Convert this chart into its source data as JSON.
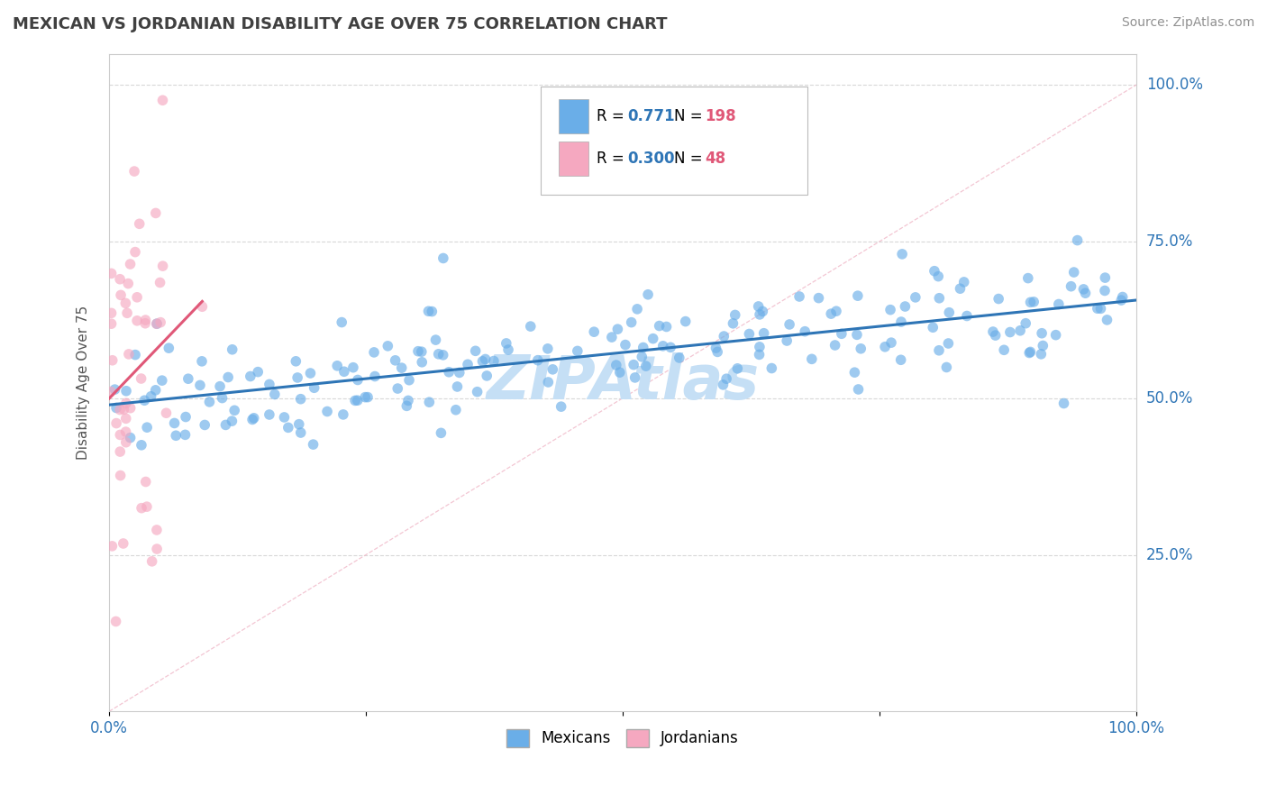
{
  "title": "MEXICAN VS JORDANIAN DISABILITY AGE OVER 75 CORRELATION CHART",
  "source_text": "Source: ZipAtlas.com",
  "ylabel": "Disability Age Over 75",
  "legend_label_1": "Mexicans",
  "legend_label_2": "Jordanians",
  "r1": 0.771,
  "n1": 198,
  "r2": 0.3,
  "n2": 48,
  "r1_text": "0.771",
  "r2_text": "0.300",
  "blue_color": "#6aaee8",
  "pink_color": "#f5a8c0",
  "blue_dark": "#2e75b6",
  "pink_line_color": "#e05878",
  "watermark_color": "#c5dff5",
  "background_color": "#ffffff",
  "grid_color": "#d8d8d8",
  "title_color": "#404040",
  "source_color": "#909090",
  "legend_r_color": "#2e75b6",
  "legend_n_color": "#e05878",
  "scatter_blue_alpha": 0.65,
  "scatter_pink_alpha": 0.65,
  "marker_size": 70,
  "line_blue_color": "#2e75b6",
  "diag_line_color": "#cccccc",
  "xlim": [
    0.0,
    1.0
  ],
  "ylim": [
    0.0,
    1.05
  ],
  "blue_scatter_seed": 42,
  "pink_scatter_seed": 7,
  "ytick_color": "#2e75b6",
  "xtick_color": "#2e75b6"
}
